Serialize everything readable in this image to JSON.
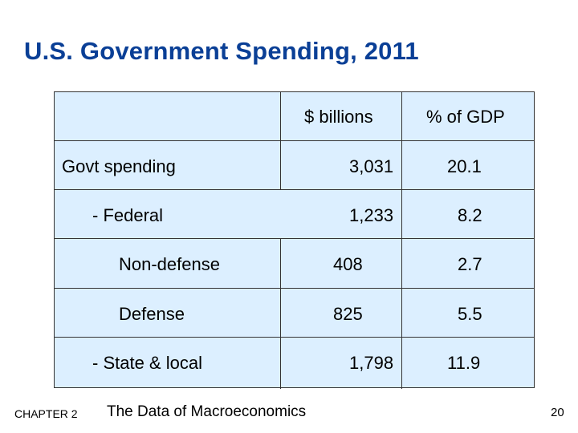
{
  "title": "U.S. Government Spending, 2011",
  "table": {
    "headers": {
      "billions": "$ billions",
      "pct_gdp": "% of GDP"
    },
    "rows": [
      {
        "label": "Govt spending",
        "billions": "3,031",
        "pct": "20.1"
      },
      {
        "label": "- Federal",
        "billions": "1,233",
        "pct": "8.2"
      },
      {
        "label": "Non-defense",
        "billions": "408",
        "pct": "2.7"
      },
      {
        "label": "Defense",
        "billions": "825",
        "pct": "5.5"
      },
      {
        "label": "- State & local",
        "billions": "1,798",
        "pct": "11.9"
      }
    ]
  },
  "footer": {
    "chapter": "CHAPTER 2",
    "book": "The Data of Macroeconomics",
    "page": "20"
  }
}
